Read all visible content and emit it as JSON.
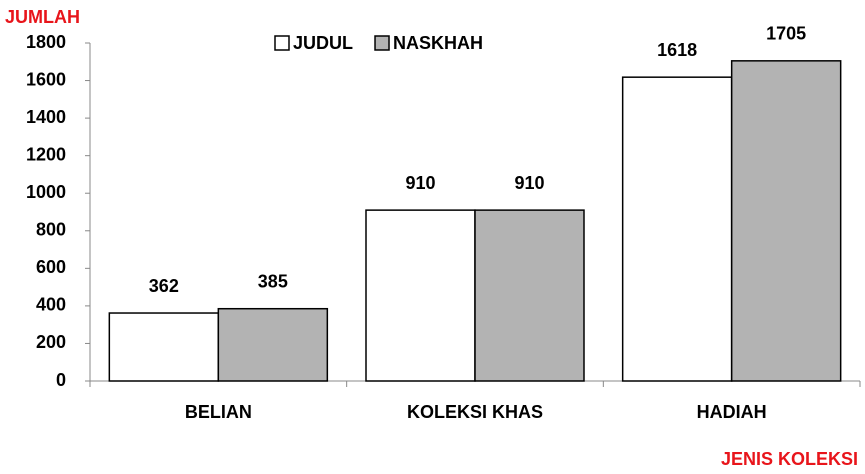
{
  "chart_data": {
    "type": "bar",
    "y_axis_label": "JUMLAH",
    "x_axis_label": "JENIS KOLEKSI",
    "categories": [
      "BELIAN",
      "KOLEKSI KHAS",
      "HADIAH"
    ],
    "series": [
      {
        "name": "JUDUL",
        "color": "#ffffff",
        "values": [
          362,
          910,
          1618
        ]
      },
      {
        "name": "NASKHAH",
        "color": "#b3b3b3",
        "values": [
          385,
          910,
          1705
        ]
      }
    ],
    "ylim": [
      0,
      1800
    ],
    "yticks": [
      0,
      200,
      400,
      600,
      800,
      1000,
      1200,
      1400,
      1600,
      1800
    ],
    "grid": false,
    "legend": "top"
  }
}
